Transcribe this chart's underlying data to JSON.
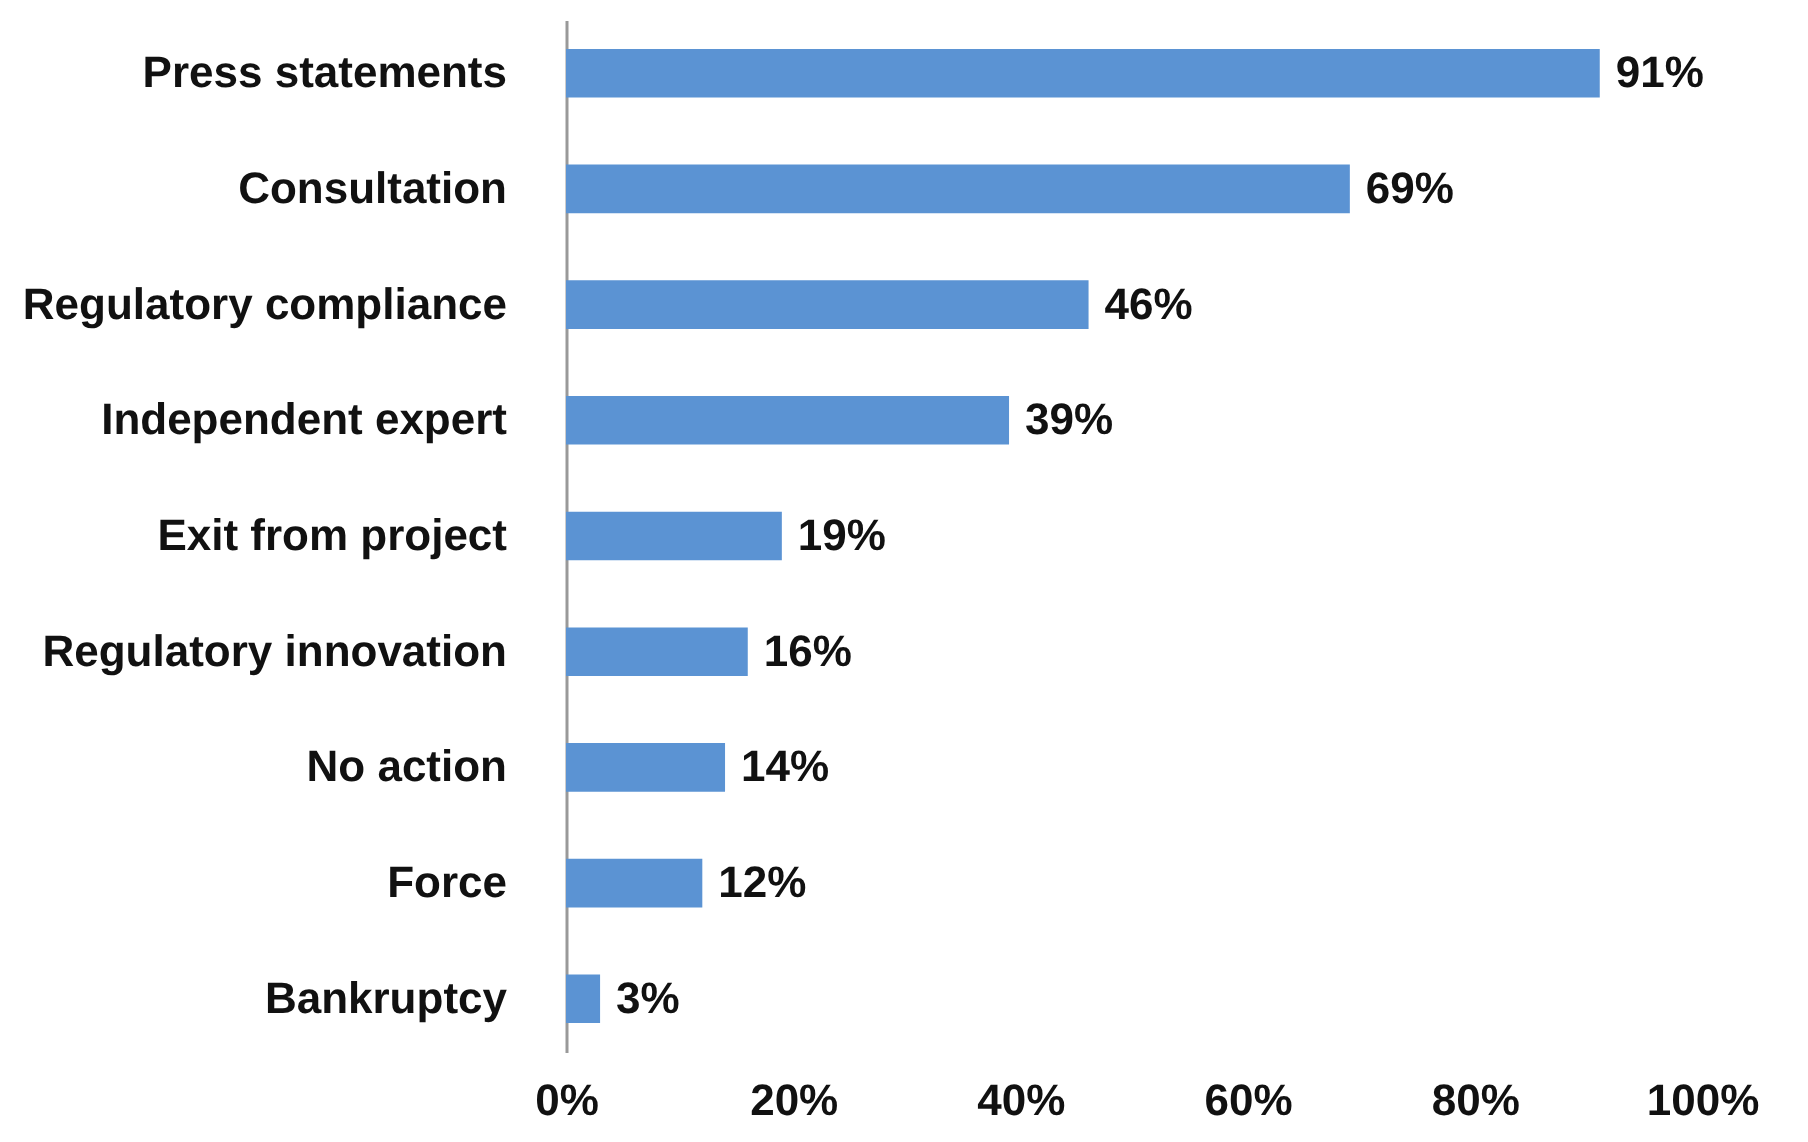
{
  "chart_data": {
    "type": "bar",
    "orientation": "horizontal",
    "categories": [
      "Press statements",
      "Consultation",
      "Regulatory compliance",
      "Independent expert",
      "Exit from project",
      "Regulatory innovation",
      "No action",
      "Force",
      "Bankruptcy"
    ],
    "values": [
      91,
      69,
      46,
      39,
      19,
      16,
      14,
      12,
      3
    ],
    "value_labels": [
      "91%",
      "69%",
      "46%",
      "39%",
      "19%",
      "16%",
      "14%",
      "12%",
      "3%"
    ],
    "color": "#5b93d3",
    "xlim": [
      0,
      100
    ],
    "xticks": [
      {
        "value": 0,
        "label": "0%"
      },
      {
        "value": 20,
        "label": "20%"
      },
      {
        "value": 40,
        "label": "40%"
      },
      {
        "value": 60,
        "label": "60%"
      },
      {
        "value": 80,
        "label": "80%"
      },
      {
        "value": 100,
        "label": "100%"
      }
    ],
    "grid": false
  }
}
